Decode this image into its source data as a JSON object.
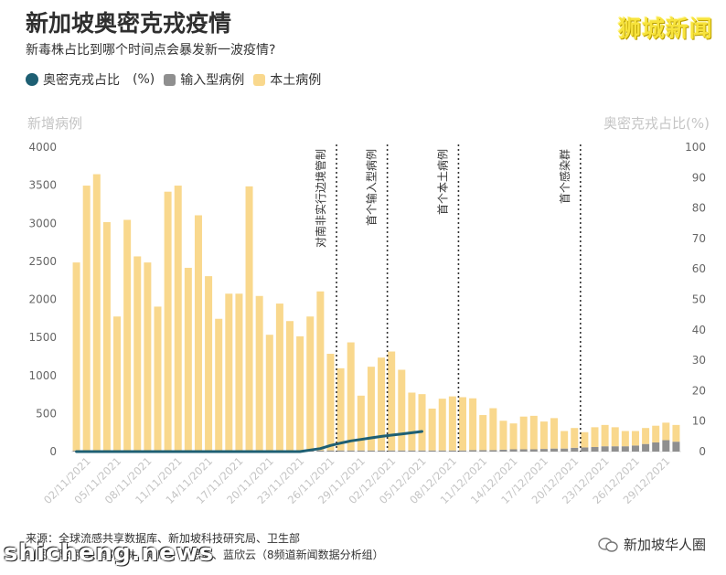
{
  "header": {
    "title": "新加坡奥密克戎疫情",
    "subtitle": "新毒株占比到哪个时间点会暴发新一波疫情?",
    "brand": "狮城新闻"
  },
  "legend": {
    "omicron": "奥密克戎占比",
    "omicron_unit": "(%)",
    "imported": "输入型病例",
    "local": "本土病例"
  },
  "colors": {
    "local": "#f9d88d",
    "imported": "#8f8f8f",
    "omicron": "#1e5f73",
    "axis_text": "#c4c4c4"
  },
  "chart_data": {
    "type": "bar",
    "title": "新加坡奥密克戎疫情",
    "ylabel_left": "新增病例",
    "ylabel_right": "奥密克戎占比(%)",
    "ylim_left": [
      0,
      4000
    ],
    "ylim_right": [
      0,
      100
    ],
    "yticks_left": [
      "0",
      "500",
      "1000",
      "1500",
      "2000",
      "2500",
      "3000",
      "3500",
      "4000"
    ],
    "yticks_right": [
      "0",
      "10",
      "20",
      "30",
      "40",
      "50",
      "60",
      "70",
      "80",
      "90",
      "100"
    ],
    "x_tick_labels": [
      "02/11/2021",
      "05/11/2021",
      "08/11/2021",
      "11/11/2021",
      "14/11/2021",
      "17/11/2021",
      "20/11/2021",
      "23/11/2021",
      "26/11/2021",
      "29/11/2021",
      "02/12/2021",
      "05/12/2021",
      "08/12/2021",
      "11/12/2021",
      "14/12/2021",
      "17/12/2021",
      "20/12/2021",
      "23/12/2021",
      "26/12/2021",
      "29/12/2021"
    ],
    "dates": [
      "01/11",
      "02/11",
      "03/11",
      "04/11",
      "05/11",
      "06/11",
      "07/11",
      "08/11",
      "09/11",
      "10/11",
      "11/11",
      "12/11",
      "13/11",
      "14/11",
      "15/11",
      "16/11",
      "17/11",
      "18/11",
      "19/11",
      "20/11",
      "21/11",
      "22/11",
      "23/11",
      "24/11",
      "25/11",
      "26/11",
      "27/11",
      "28/11",
      "29/11",
      "30/11",
      "01/12",
      "02/12",
      "03/12",
      "04/12",
      "05/12",
      "06/12",
      "07/12",
      "08/12",
      "09/12",
      "10/12",
      "11/12",
      "12/12",
      "13/12",
      "14/12",
      "15/12",
      "16/12",
      "17/12",
      "18/12",
      "19/12",
      "20/12",
      "21/12",
      "22/12",
      "23/12",
      "24/12",
      "25/12",
      "26/12",
      "27/12",
      "28/12",
      "29/12",
      "30/12"
    ],
    "series": [
      {
        "name": "本土病例",
        "values": [
          2470,
          3480,
          3630,
          3000,
          1760,
          3030,
          2550,
          2470,
          1890,
          3400,
          3480,
          2400,
          3090,
          2290,
          1730,
          2060,
          2060,
          3470,
          2030,
          1520,
          1930,
          1700,
          1500,
          1760,
          2090,
          1270,
          1080,
          1420,
          720,
          1100,
          1220,
          1300,
          1060,
          760,
          740,
          550,
          680,
          710,
          700,
          680,
          460,
          550,
          380,
          340,
          430,
          440,
          360,
          400,
          230,
          260,
          200,
          260,
          280,
          250,
          200,
          190,
          210,
          220,
          230,
          220
        ]
      },
      {
        "name": "输入型病例",
        "values": [
          15,
          15,
          15,
          15,
          15,
          15,
          15,
          15,
          15,
          15,
          15,
          15,
          15,
          15,
          15,
          15,
          15,
          15,
          15,
          15,
          15,
          15,
          15,
          15,
          15,
          15,
          15,
          15,
          15,
          15,
          15,
          15,
          15,
          15,
          15,
          15,
          15,
          15,
          15,
          20,
          20,
          20,
          25,
          30,
          30,
          30,
          35,
          40,
          40,
          50,
          55,
          60,
          70,
          70,
          70,
          80,
          100,
          120,
          150,
          130
        ]
      },
      {
        "name": "奥密克戎占比",
        "axis": "right",
        "values": [
          0,
          0,
          0,
          0,
          0,
          0,
          0,
          0,
          0,
          0,
          0,
          0,
          0,
          0,
          0,
          0,
          0,
          0,
          0,
          0,
          0,
          0,
          0,
          0.5,
          1.0,
          2.0,
          2.8,
          3.5,
          4.0,
          4.5,
          5.0,
          5.4,
          5.8,
          6.2,
          6.6,
          null,
          null,
          null,
          null,
          null,
          null,
          null,
          null,
          null,
          null,
          null,
          null,
          null,
          null,
          null,
          null,
          null,
          null,
          null,
          null,
          null,
          null,
          null,
          null,
          null
        ]
      }
    ],
    "annotations": [
      {
        "label": "对南非实行边境管制",
        "date": "27/11"
      },
      {
        "label": "首个输入型病例",
        "date": "02/12"
      },
      {
        "label": "首个本土病例",
        "date": "09/12"
      },
      {
        "label": "首个感染群",
        "date": "21/12"
      }
    ],
    "grid": false,
    "legend_position": "top-left"
  },
  "footer": {
    "source": "来源：全球流感共享数据库、新加坡科技研究局、卫生部",
    "credits": "制图：陈丽玲、郭丽琳、郑欣、陈思璇、蓝欣云（8频道新闻数据分析组）",
    "watermark": "shicheng.news",
    "wechat": "新加坡华人圈"
  }
}
